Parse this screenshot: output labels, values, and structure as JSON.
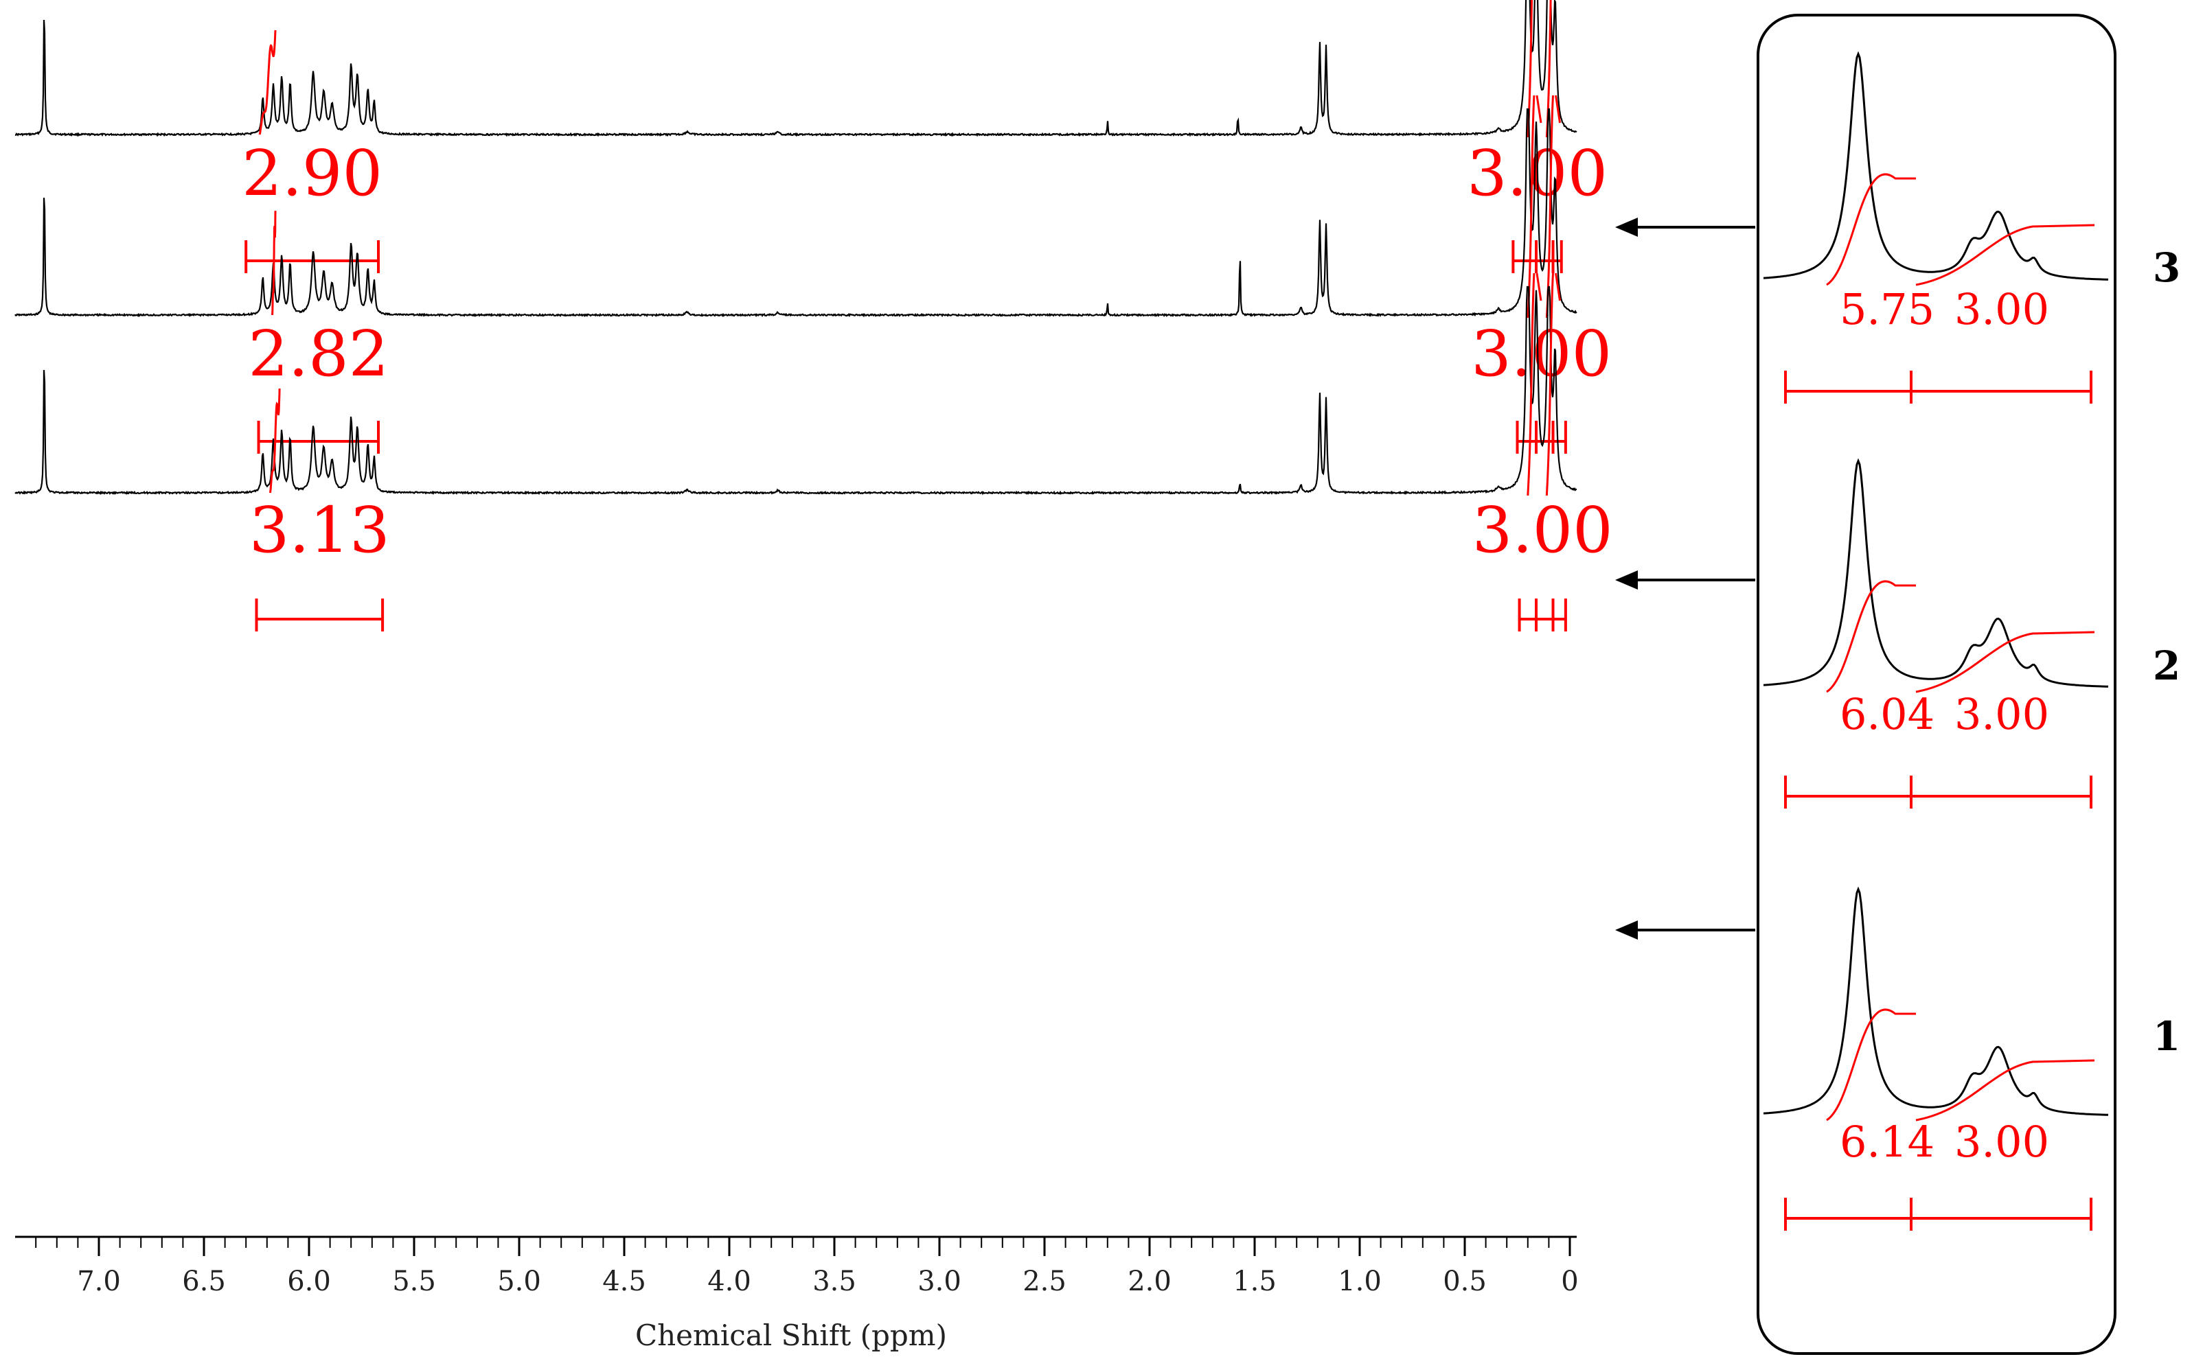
{
  "chart_data": {
    "type": "line",
    "xlabel": "Chemical Shift (ppm)",
    "xlim": [
      7.35,
      0
    ],
    "x_ticks": [
      "7.0",
      "6.5",
      "6.0",
      "5.5",
      "5.0",
      "4.5",
      "4.0",
      "3.5",
      "3.0",
      "2.5",
      "2.0",
      "1.5",
      "1.0",
      "0.5",
      "0"
    ],
    "x_tick_values": [
      7.0,
      6.5,
      6.0,
      5.5,
      5.0,
      4.5,
      4.0,
      3.5,
      3.0,
      2.5,
      2.0,
      1.5,
      1.0,
      0.5,
      0
    ],
    "colors": {
      "spectrum": "#000000",
      "integral": "#ff0000"
    },
    "spectra": [
      {
        "label": "3",
        "integrals": [
          {
            "value": "2.90",
            "range": [
              6.3,
              5.67
            ]
          },
          {
            "value": "3.00",
            "range": [
              0.27,
              0.04
            ]
          }
        ],
        "inset_integrals": [
          "5.75",
          "3.00"
        ]
      },
      {
        "label": "2",
        "integrals": [
          {
            "value": "2.82",
            "range": [
              6.24,
              5.67
            ]
          },
          {
            "value": "3.00",
            "range": [
              0.25,
              0.02
            ]
          }
        ],
        "inset_integrals": [
          "6.04",
          "3.00"
        ]
      },
      {
        "label": "1",
        "integrals": [
          {
            "value": "3.13",
            "range": [
              6.25,
              5.65
            ]
          },
          {
            "value": "3.00",
            "range": [
              0.24,
              0.02
            ]
          }
        ],
        "inset_integrals": [
          "6.14",
          "3.00"
        ]
      }
    ]
  }
}
